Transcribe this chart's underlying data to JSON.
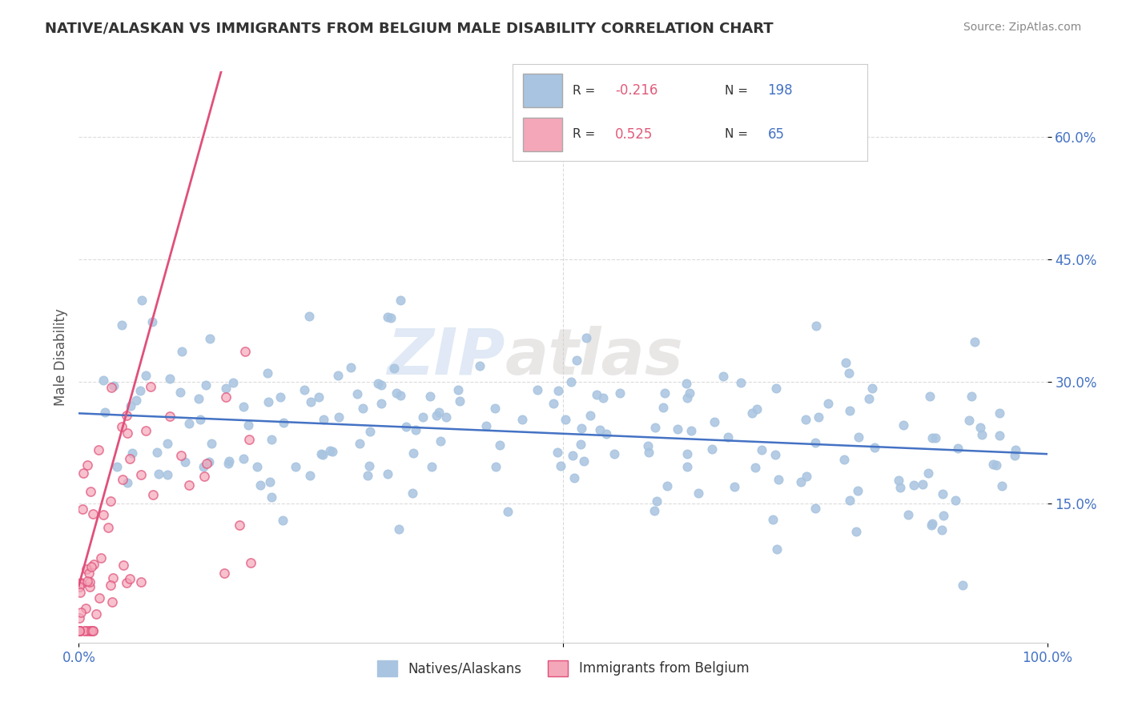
{
  "title": "NATIVE/ALASKAN VS IMMIGRANTS FROM BELGIUM MALE DISABILITY CORRELATION CHART",
  "source": "Source: ZipAtlas.com",
  "xlabel": "",
  "ylabel": "Male Disability",
  "xlim": [
    0.0,
    1.0
  ],
  "ylim": [
    -0.02,
    0.68
  ],
  "yticks": [
    0.15,
    0.3,
    0.45,
    0.6
  ],
  "ytick_labels": [
    "15.0%",
    "30.0%",
    "45.0%",
    "60.0%"
  ],
  "blue_R": -0.216,
  "blue_N": 198,
  "pink_R": 0.525,
  "pink_N": 65,
  "blue_color": "#a8c4e0",
  "blue_line_color": "#4472c4",
  "pink_color": "#f4a7b9",
  "pink_line_color": "#e0507a",
  "legend_label_blue": "Natives/Alaskans",
  "legend_label_pink": "Immigrants from Belgium",
  "watermark_part1": "ZIP",
  "watermark_part2": "atlas",
  "background_color": "#ffffff",
  "grid_color": "#cccccc",
  "title_color": "#333333",
  "axis_label_color": "#4472c4",
  "legend_N_color": "#4472c4",
  "legend_R_neg_color": "#e05c7a",
  "legend_R_pos_color": "#e05c7a"
}
